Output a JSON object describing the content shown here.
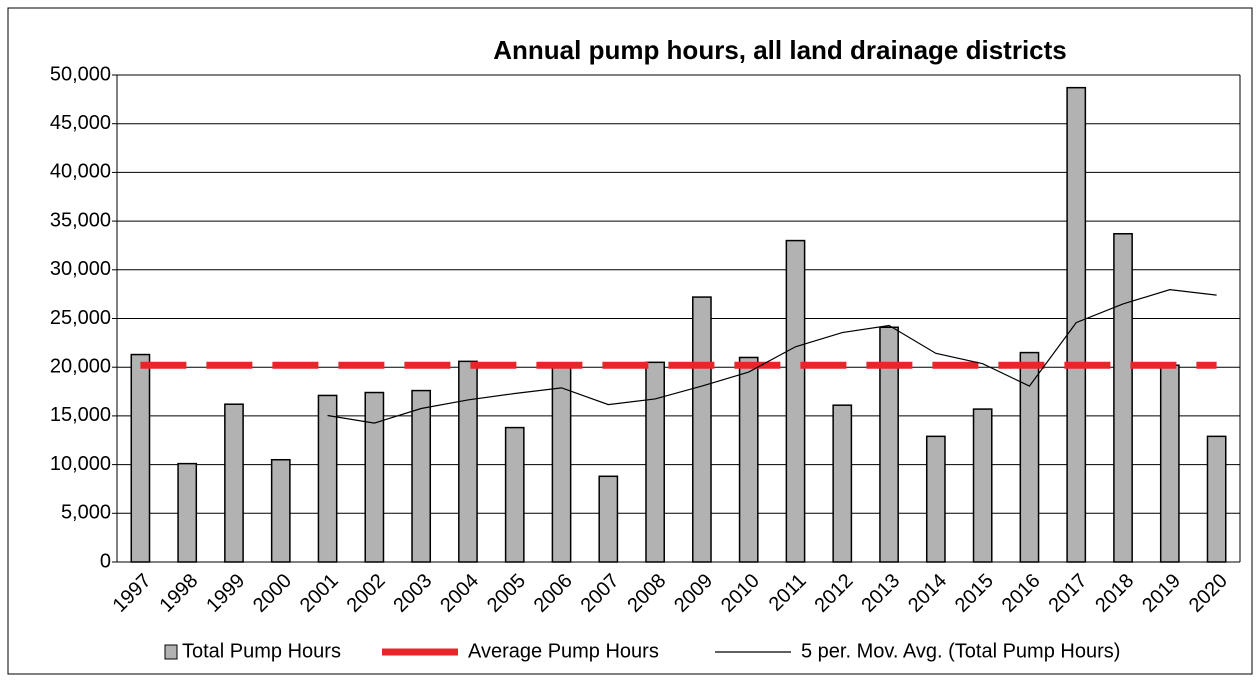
{
  "chart_data": {
    "type": "bar",
    "title": "Annual pump hours, all land drainage districts",
    "categories": [
      "1997",
      "1998",
      "1999",
      "2000",
      "2001",
      "2002",
      "2003",
      "2004",
      "2005",
      "2006",
      "2007",
      "2008",
      "2009",
      "2010",
      "2011",
      "2012",
      "2013",
      "2014",
      "2015",
      "2016",
      "2017",
      "2018",
      "2019",
      "2020"
    ],
    "series": [
      {
        "name": "Total Pump Hours",
        "type": "bar",
        "color": "#b2b2b2",
        "values": [
          21300,
          10100,
          16200,
          10500,
          17100,
          17400,
          17600,
          20600,
          13800,
          20000,
          8800,
          20500,
          27200,
          21000,
          33000,
          16100,
          24100,
          12900,
          15700,
          21500,
          48700,
          33700,
          20200,
          12900
        ]
      },
      {
        "name": "Average Pump Hours",
        "type": "dashed-line",
        "color": "#e8262a",
        "values": [
          20200,
          20200,
          20200,
          20200,
          20200,
          20200,
          20200,
          20200,
          20200,
          20200,
          20200,
          20200,
          20200,
          20200,
          20200,
          20200,
          20200,
          20200,
          20200,
          20200,
          20200,
          20200,
          20200,
          20200
        ]
      },
      {
        "name": "5 per. Mov. Avg. (Total Pump Hours)",
        "type": "line",
        "color": "#000000",
        "values": [
          null,
          null,
          null,
          null,
          15040,
          14260,
          15760,
          16640,
          17300,
          17880,
          16160,
          16740,
          18060,
          19500,
          22100,
          23560,
          24280,
          21420,
          20360,
          18060,
          24580,
          26500,
          27960,
          27400
        ]
      }
    ],
    "ylim": [
      0,
      50000
    ],
    "yticks": [
      0,
      {
        "value": 5000,
        "label": "5,000"
      },
      {
        "value": 10000,
        "label": "10,000"
      },
      {
        "value": 15000,
        "label": "15,000"
      },
      {
        "value": 20000,
        "label": "20,000"
      },
      {
        "value": 25000,
        "label": "25,000"
      },
      {
        "value": 30000,
        "label": "30,000"
      },
      {
        "value": 35000,
        "label": "35,000"
      },
      {
        "value": 40000,
        "label": "40,000"
      },
      {
        "value": 45000,
        "label": "45,000"
      },
      {
        "value": 50000,
        "label": "50,000"
      }
    ],
    "grid": true,
    "legend": "bottom"
  }
}
